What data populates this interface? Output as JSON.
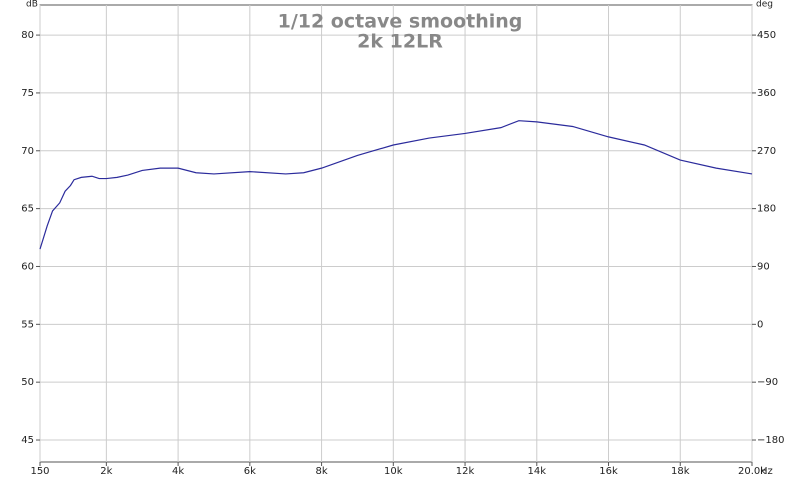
{
  "chart_data": {
    "type": "line",
    "title": "1/12 octave smoothing",
    "subtitle": "2k 12LR",
    "ylabel": "dB",
    "y2label": "deg",
    "xunit": "Hz",
    "color": "#2b2b9c",
    "x": [
      150,
      250,
      350,
      500,
      700,
      850,
      1000,
      1100,
      1300,
      1600,
      1800,
      2000,
      2300,
      2600,
      3000,
      3500,
      4000,
      4500,
      5000,
      6000,
      7000,
      7500,
      8000,
      9000,
      10000,
      11000,
      12000,
      13000,
      13500,
      14000,
      15000,
      16000,
      17000,
      18000,
      19000,
      20000
    ],
    "values": [
      61.5,
      62.5,
      63.5,
      64.8,
      65.5,
      66.5,
      67.0,
      67.5,
      67.7,
      67.8,
      67.6,
      67.6,
      67.7,
      67.9,
      68.3,
      68.5,
      68.5,
      68.1,
      68.0,
      68.2,
      68.0,
      68.1,
      68.5,
      69.6,
      70.5,
      71.1,
      71.5,
      72.0,
      72.6,
      72.5,
      72.1,
      71.2,
      70.5,
      69.2,
      68.5,
      68.0
    ],
    "xlim": [
      150,
      20000
    ],
    "xticks": [
      150,
      {
        "value": 2000,
        "label": "2k"
      },
      {
        "value": 4000,
        "label": "4k"
      },
      {
        "value": 6000,
        "label": "6k"
      },
      {
        "value": 8000,
        "label": "8k"
      },
      {
        "value": 10000,
        "label": "10k"
      },
      {
        "value": 12000,
        "label": "12k"
      },
      {
        "value": 14000,
        "label": "14k"
      },
      {
        "value": 16000,
        "label": "16k"
      },
      {
        "value": 18000,
        "label": "18k"
      },
      {
        "value": 20000,
        "label": "20.0k"
      }
    ],
    "ylim": [
      43.1,
      82.6
    ],
    "yticks": [
      45,
      50,
      55,
      60,
      65,
      70,
      75,
      80
    ],
    "y2lim": [
      -214.2,
      496.8
    ],
    "y2ticks": [
      {
        "value": -180,
        "label": "−180"
      },
      {
        "value": -90,
        "label": "−90"
      },
      0,
      90,
      180,
      270,
      360,
      450
    ],
    "grid": true
  }
}
